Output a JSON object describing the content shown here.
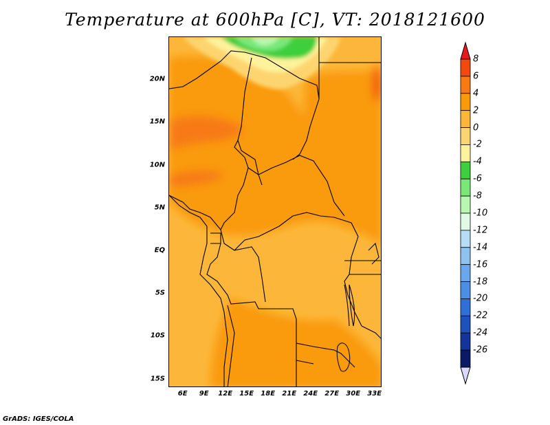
{
  "title": "Temperature at 600hPa [C], VT: 2018121600",
  "footer": "GrADS: IGES/COLA",
  "map": {
    "lat_labels": [
      "20N",
      "15N",
      "10N",
      "5N",
      "EQ",
      "5S",
      "10S",
      "15S"
    ],
    "lat_values": [
      20,
      15,
      10,
      5,
      0,
      -5,
      -10,
      -15
    ],
    "lon_labels": [
      "6E",
      "9E",
      "12E",
      "15E",
      "18E",
      "21E",
      "24E",
      "27E",
      "30E",
      "33E"
    ],
    "lon_values": [
      6,
      9,
      12,
      15,
      18,
      21,
      24,
      27,
      30,
      33
    ],
    "lat_range": [
      -16,
      25
    ],
    "lon_range": [
      4,
      34
    ]
  },
  "colorbar": {
    "labels": [
      "8",
      "6",
      "4",
      "2",
      "0",
      "-2",
      "-4",
      "-6",
      "-8",
      "-10",
      "-12",
      "-14",
      "-16",
      "-18",
      "-20",
      "-22",
      "-24",
      "-26"
    ],
    "colors": [
      "#e41a1c",
      "#f04a0c",
      "#f77a12",
      "#fa9a0a",
      "#fcb73a",
      "#fdd570",
      "#fef39c",
      "#3ecf3e",
      "#79e879",
      "#b7f7b0",
      "#e1fae6",
      "#b6dcf6",
      "#8ec3f1",
      "#69a8ec",
      "#4a8ee6",
      "#2f6fd8",
      "#1d51bb",
      "#13349a",
      "#0a1a68",
      "#dadafe"
    ]
  }
}
